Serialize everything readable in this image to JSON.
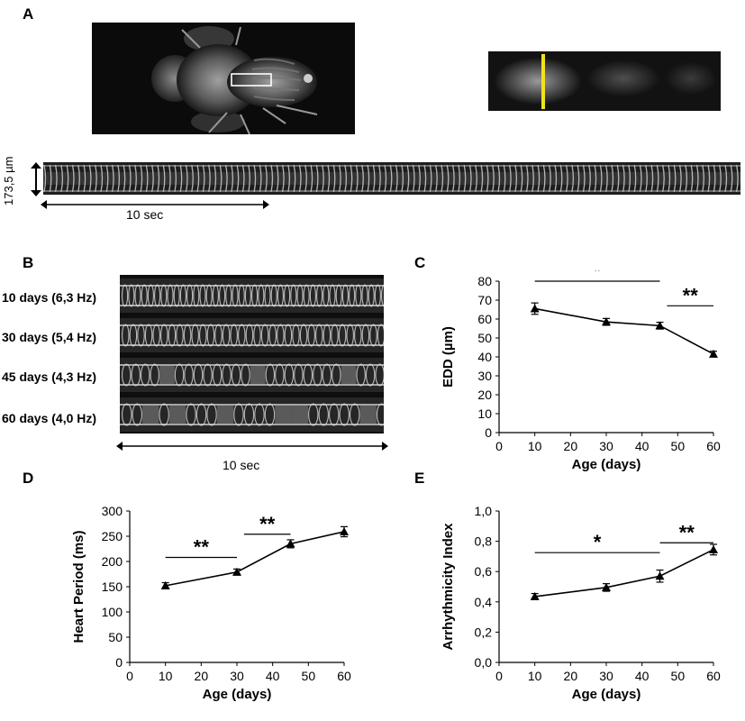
{
  "panels": {
    "a": {
      "letter": "A",
      "scale_label": "173,5 µm",
      "time_label": "10 sec"
    },
    "b": {
      "letter": "B",
      "rows": [
        "10 days (6,3 Hz)",
        "30 days (5,4 Hz)",
        "45 days (4,3 Hz)",
        "60 days (4,0 Hz)"
      ],
      "time_label": "10 sec"
    },
    "c": {
      "letter": "C"
    },
    "d": {
      "letter": "D"
    },
    "e": {
      "letter": "E"
    }
  },
  "chart_data": [
    {
      "id": "C",
      "type": "line",
      "x": [
        10,
        30,
        45,
        60
      ],
      "values": [
        65.5,
        58.5,
        56.5,
        41.5
      ],
      "errors": [
        3.0,
        1.8,
        1.8,
        1.5
      ],
      "xlabel": "Age (days)",
      "ylabel": "EDD (µm)",
      "xlim": [
        0,
        60
      ],
      "ylim": [
        0,
        80
      ],
      "xticks": [
        "0",
        "10",
        "20",
        "30",
        "40",
        "50",
        "60"
      ],
      "yticks": [
        "0",
        "10",
        "20",
        "30",
        "40",
        "50",
        "60",
        "70",
        "80"
      ],
      "annotations": [
        {
          "text": "*",
          "x_from": 10,
          "x_to": 45,
          "y": 80
        },
        {
          "text": "**",
          "x_from": 47,
          "x_to": 60,
          "y": 67
        }
      ]
    },
    {
      "id": "D",
      "type": "line",
      "x": [
        10,
        30,
        45,
        60
      ],
      "values": [
        152,
        179,
        235,
        259
      ],
      "errors": [
        6,
        6,
        8,
        10
      ],
      "xlabel": "Age (days)",
      "ylabel": "Heart Period (ms)",
      "xlim": [
        0,
        60
      ],
      "ylim": [
        0,
        300
      ],
      "xticks": [
        "0",
        "10",
        "20",
        "30",
        "40",
        "50",
        "60"
      ],
      "yticks": [
        "0",
        "50",
        "100",
        "150",
        "200",
        "250",
        "300"
      ],
      "annotations": [
        {
          "text": "**",
          "x_from": 10,
          "x_to": 30,
          "y": 208
        },
        {
          "text": "**",
          "x_from": 32,
          "x_to": 45,
          "y": 254
        }
      ]
    },
    {
      "id": "E",
      "type": "line",
      "x": [
        10,
        30,
        45,
        60
      ],
      "values": [
        0.435,
        0.495,
        0.57,
        0.745
      ],
      "errors": [
        0.02,
        0.025,
        0.04,
        0.035
      ],
      "xlabel": "Age (days)",
      "ylabel": "Arrhythmicity Index",
      "xlim": [
        0,
        60
      ],
      "ylim": [
        0,
        1.0
      ],
      "xticks": [
        "0",
        "10",
        "20",
        "30",
        "40",
        "50",
        "60"
      ],
      "yticks": [
        "0,0",
        "0,2",
        "0,4",
        "0,6",
        "0,8",
        "1,0"
      ],
      "annotations": [
        {
          "text": "*",
          "x_from": 10,
          "x_to": 45,
          "y": 0.725
        },
        {
          "text": "**",
          "x_from": 45,
          "x_to": 60,
          "y": 0.79
        }
      ]
    }
  ]
}
